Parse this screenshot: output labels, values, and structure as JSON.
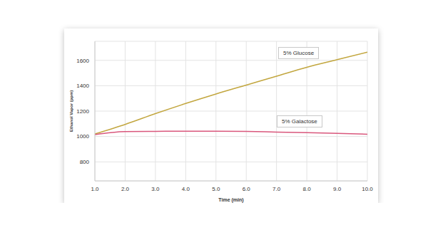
{
  "chart_data": {
    "type": "line",
    "x_label": "Time (min)",
    "y_label": "Ethanol Vapor (ppm)",
    "x": [
      1,
      2,
      3,
      4,
      5,
      6,
      7,
      8,
      9,
      10
    ],
    "series": [
      {
        "name": "5% Glucose",
        "color": "#c2a63e",
        "values": [
          1020,
          1095,
          1180,
          1260,
          1335,
          1405,
          1475,
          1545,
          1605,
          1665
        ]
      },
      {
        "name": "5% Galactose",
        "color": "#d9577c",
        "values": [
          1015,
          1038,
          1040,
          1042,
          1042,
          1040,
          1035,
          1030,
          1025,
          1018
        ]
      }
    ],
    "xlim": [
      1,
      10
    ],
    "xticks": [
      {
        "value": 1,
        "label": "1.0"
      },
      {
        "value": 2,
        "label": "2.0"
      },
      {
        "value": 3,
        "label": "3.0"
      },
      {
        "value": 4,
        "label": "4.0"
      },
      {
        "value": 5,
        "label": "5.0"
      },
      {
        "value": 6,
        "label": "6.0"
      },
      {
        "value": 7,
        "label": "7.0"
      },
      {
        "value": 8,
        "label": "8.0"
      },
      {
        "value": 9,
        "label": "9.0"
      },
      {
        "value": 10,
        "label": "10.0"
      }
    ],
    "ylim": [
      650,
      1750
    ],
    "yticks": [
      800,
      1000,
      1200,
      1400,
      1600
    ],
    "grid": true
  }
}
